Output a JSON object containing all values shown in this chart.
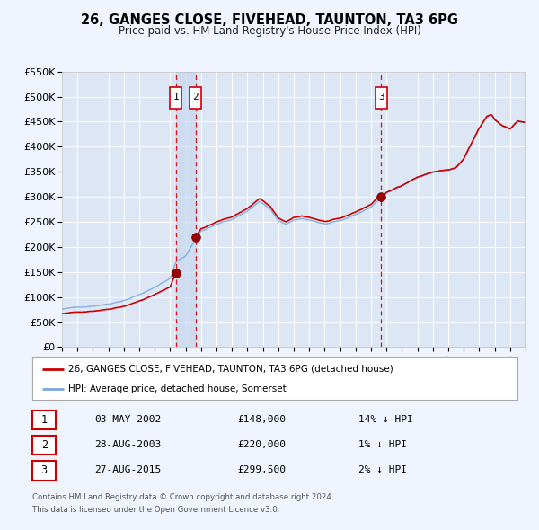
{
  "title": "26, GANGES CLOSE, FIVEHEAD, TAUNTON, TA3 6PG",
  "subtitle": "Price paid vs. HM Land Registry's House Price Index (HPI)",
  "legend_line1": "26, GANGES CLOSE, FIVEHEAD, TAUNTON, TA3 6PG (detached house)",
  "legend_line2": "HPI: Average price, detached house, Somerset",
  "transactions": [
    {
      "num": 1,
      "date": "03-MAY-2002",
      "price": 148000,
      "pct": "14%",
      "dir": "↓",
      "year_x": 2002.37
    },
    {
      "num": 2,
      "date": "28-AUG-2003",
      "price": 220000,
      "pct": "1%",
      "dir": "↓",
      "year_x": 2003.66
    },
    {
      "num": 3,
      "date": "27-AUG-2015",
      "price": 299500,
      "pct": "2%",
      "dir": "↓",
      "year_x": 2015.66
    }
  ],
  "footer_line1": "Contains HM Land Registry data © Crown copyright and database right 2024.",
  "footer_line2": "This data is licensed under the Open Government Licence v3.0.",
  "background_color": "#f0f4ff",
  "plot_bg_color": "#dce6f5",
  "grid_color": "#ffffff",
  "hpi_color": "#7aaadd",
  "price_color": "#cc0000",
  "marker_color": "#990000",
  "dashed_color": "#cc0000",
  "shade_color": "#c8d8f0",
  "ylim": [
    0,
    550000
  ],
  "yticks": [
    0,
    50000,
    100000,
    150000,
    200000,
    250000,
    300000,
    350000,
    400000,
    450000,
    500000,
    550000
  ],
  "xlim_start": 1995,
  "xlim_end": 2025,
  "sale1_year": 2002.37,
  "sale1_price": 148000,
  "sale2_year": 2003.66,
  "sale2_price": 220000,
  "sale3_year": 2015.66,
  "sale3_price": 299500
}
